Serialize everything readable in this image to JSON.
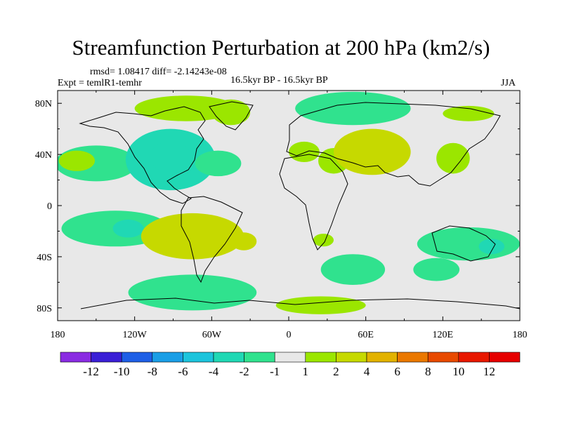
{
  "chart_data": {
    "type": "heatmap",
    "title": "Streamfunction Perturbation at 200 hPa (km2/s)",
    "stats_text": "rmsd= 1.08417  diff= -2.14243e-08",
    "experiment_text": "Expt = temlR1-temhr",
    "period_text": "16.5kyr BP - 16.5kyr BP",
    "season": "JJA",
    "xlim": [
      -180,
      180
    ],
    "ylim": [
      -90,
      90
    ],
    "x_ticks": [
      {
        "value": -180,
        "label": "180"
      },
      {
        "value": -120,
        "label": "120W"
      },
      {
        "value": -60,
        "label": "60W"
      },
      {
        "value": 0,
        "label": "0"
      },
      {
        "value": 60,
        "label": "60E"
      },
      {
        "value": 120,
        "label": "120E"
      },
      {
        "value": 180,
        "label": "180"
      }
    ],
    "y_ticks": [
      {
        "value": 80,
        "label": "80N"
      },
      {
        "value": 40,
        "label": "40N"
      },
      {
        "value": 0,
        "label": "0"
      },
      {
        "value": -40,
        "label": "40S"
      },
      {
        "value": -80,
        "label": "80S"
      }
    ],
    "levels": [
      -12,
      -10,
      -8,
      -6,
      -4,
      -2,
      -1,
      1,
      2,
      4,
      6,
      8,
      10,
      12
    ],
    "colorbar_labels": [
      "-12",
      "-10",
      "-8",
      "-6",
      "-4",
      "-2",
      "-1",
      "1",
      "2",
      "4",
      "6",
      "8",
      "10",
      "12"
    ],
    "colors": [
      "#8a2be2",
      "#3a1fd6",
      "#1e5fe6",
      "#1a9ee6",
      "#1cc4dc",
      "#20d8b4",
      "#30e28e",
      "#e8e8e8",
      "#9be600",
      "#c6d900",
      "#e2b200",
      "#ea7800",
      "#e84a00",
      "#e81800",
      "#e60000"
    ],
    "regions": [
      {
        "name": "north-pacific-negative",
        "lon": -150,
        "lat": 33,
        "rlon": 32,
        "rlat": 14,
        "value": -1.5
      },
      {
        "name": "north-america-negative",
        "lon": -92,
        "lat": 36,
        "rlon": 35,
        "rlat": 24,
        "value": -2.5
      },
      {
        "name": "north-america-core",
        "lon": -92,
        "lat": 38,
        "rlon": 16,
        "rlat": 12,
        "value": -3.5
      },
      {
        "name": "atlantic-negative",
        "lon": -55,
        "lat": 33,
        "rlon": 18,
        "rlat": 10,
        "value": -1.5
      },
      {
        "name": "canada-positive",
        "lon": -80,
        "lat": 76,
        "rlon": 40,
        "rlat": 10,
        "value": 1.5
      },
      {
        "name": "greenland-positive",
        "lon": -45,
        "lat": 73,
        "rlon": 15,
        "rlat": 10,
        "value": 1.5
      },
      {
        "name": "central-pacific-positive",
        "lon": -165,
        "lat": 35,
        "rlon": 14,
        "rlat": 8,
        "value": 1.5
      },
      {
        "name": "arctic-europe-negative",
        "lon": 50,
        "lat": 76,
        "rlon": 45,
        "rlat": 13,
        "value": -1.5
      },
      {
        "name": "east-siberia-positive",
        "lon": 140,
        "lat": 72,
        "rlon": 20,
        "rlat": 6,
        "value": 1.5
      },
      {
        "name": "west-europe-positive",
        "lon": 12,
        "lat": 42,
        "rlon": 12,
        "rlat": 8,
        "value": 1.5
      },
      {
        "name": "mediterranean-positive",
        "lon": 35,
        "lat": 35,
        "rlon": 12,
        "rlat": 10,
        "value": 1.5
      },
      {
        "name": "central-asia-positive",
        "lon": 65,
        "lat": 42,
        "rlon": 30,
        "rlat": 18,
        "value": 2
      },
      {
        "name": "central-asia-core",
        "lon": 68,
        "lat": 44,
        "rlon": 10,
        "rlat": 8,
        "value": 3
      },
      {
        "name": "east-asia-positive",
        "lon": 128,
        "lat": 37,
        "rlon": 13,
        "rlat": 12,
        "value": 1.5
      },
      {
        "name": "south-pacific-negative",
        "lon": -135,
        "lat": -18,
        "rlon": 42,
        "rlat": 14,
        "value": -2
      },
      {
        "name": "south-pacific-core",
        "lon": -125,
        "lat": -18,
        "rlon": 12,
        "rlat": 7,
        "value": -3
      },
      {
        "name": "south-america-positive",
        "lon": -75,
        "lat": -24,
        "rlon": 40,
        "rlat": 18,
        "value": 2
      },
      {
        "name": "south-america-core",
        "lon": -85,
        "lat": -22,
        "rlon": 14,
        "rlat": 9,
        "value": 3
      },
      {
        "name": "south-atlantic-positive",
        "lon": -35,
        "lat": -28,
        "rlon": 10,
        "rlat": 7,
        "value": 3
      },
      {
        "name": "southern-ocean-negative",
        "lon": -75,
        "lat": -68,
        "rlon": 50,
        "rlat": 14,
        "value": -1.5
      },
      {
        "name": "southern-africa-positive",
        "lon": 27,
        "lat": -27,
        "rlon": 8,
        "rlat": 5,
        "value": 1.5
      },
      {
        "name": "south-indian-negative",
        "lon": 50,
        "lat": -50,
        "rlon": 25,
        "rlat": 12,
        "value": -1.5
      },
      {
        "name": "south-ocean-east-negative",
        "lon": 115,
        "lat": -50,
        "rlon": 18,
        "rlat": 9,
        "value": -1.5
      },
      {
        "name": "australia-negative",
        "lon": 140,
        "lat": -30,
        "rlon": 40,
        "rlat": 13,
        "value": -2
      },
      {
        "name": "australia-core",
        "lon": 158,
        "lat": -32,
        "rlon": 10,
        "rlat": 6,
        "value": -3
      },
      {
        "name": "antarctic-positive",
        "lon": 25,
        "lat": -78,
        "rlon": 35,
        "rlat": 7,
        "value": 1.5
      }
    ]
  }
}
